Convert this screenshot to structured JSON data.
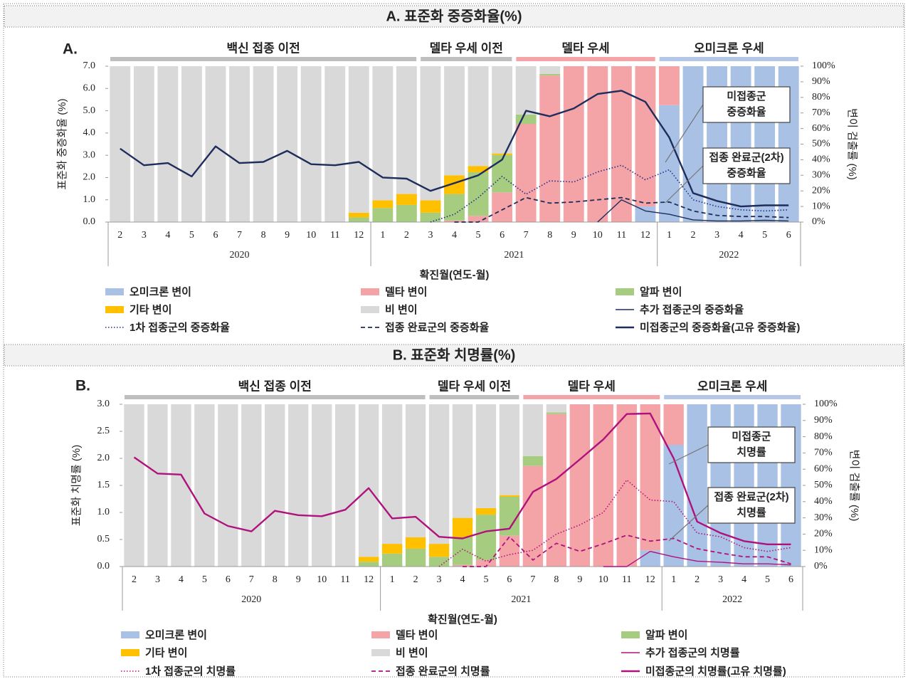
{
  "chart_data": [
    {
      "type": "combo",
      "section_title": "A. 표준화 중증화율(%)",
      "panel_label": "A.",
      "y_label": "표준화 중증화율 (%)",
      "y2_label": "변이 검출률 (%)",
      "x_label": "확진월(연도-월)",
      "periods": [
        {
          "label": "백신 접종 이전",
          "color": "#bfbfbf"
        },
        {
          "label": "델타 우세 이전",
          "color": "#bfbfbf"
        },
        {
          "label": "델타 우세",
          "color": "#f4a3a6"
        },
        {
          "label": "오미크론 우세",
          "color": "#b4c7e7"
        }
      ],
      "annotations": [
        [
          "미접종군",
          "중증화율"
        ],
        [
          "접종 완료군(2차)",
          "중증화율"
        ]
      ],
      "categories": [
        [
          "2020",
          "2"
        ],
        [
          "2020",
          "3"
        ],
        [
          "2020",
          "4"
        ],
        [
          "2020",
          "5"
        ],
        [
          "2020",
          "6"
        ],
        [
          "2020",
          "7"
        ],
        [
          "2020",
          "8"
        ],
        [
          "2020",
          "9"
        ],
        [
          "2020",
          "10"
        ],
        [
          "2020",
          "11"
        ],
        [
          "2020",
          "12"
        ],
        [
          "2021",
          "1"
        ],
        [
          "2021",
          "2"
        ],
        [
          "2021",
          "3"
        ],
        [
          "2021",
          "4"
        ],
        [
          "2021",
          "5"
        ],
        [
          "2021",
          "6"
        ],
        [
          "2021",
          "7"
        ],
        [
          "2021",
          "8"
        ],
        [
          "2021",
          "9"
        ],
        [
          "2021",
          "10"
        ],
        [
          "2021",
          "11"
        ],
        [
          "2021",
          "12"
        ],
        [
          "2022",
          "1"
        ],
        [
          "2022",
          "2"
        ],
        [
          "2022",
          "3"
        ],
        [
          "2022",
          "4"
        ],
        [
          "2022",
          "5"
        ],
        [
          "2022",
          "6"
        ]
      ],
      "ylim": [
        0,
        7
      ],
      "yticks": [
        {
          "value": 0,
          "label": "0.0"
        },
        {
          "value": 1,
          "label": "1.0"
        },
        {
          "value": 2,
          "label": "2.0"
        },
        {
          "value": 3,
          "label": "3.0"
        },
        {
          "value": 4,
          "label": "4.0"
        },
        {
          "value": 5,
          "label": "5.0"
        },
        {
          "value": 6,
          "label": "6.0"
        },
        {
          "value": 7,
          "label": "7.0"
        }
      ],
      "y2lim": [
        0,
        100
      ],
      "y2ticks": [
        {
          "value": 0,
          "label": "0%"
        },
        {
          "value": 10,
          "label": "10%"
        },
        {
          "value": 20,
          "label": "20%"
        },
        {
          "value": 30,
          "label": "30%"
        },
        {
          "value": 40,
          "label": "40%"
        },
        {
          "value": 50,
          "label": "50%"
        },
        {
          "value": 60,
          "label": "60%"
        },
        {
          "value": 70,
          "label": "70%"
        },
        {
          "value": 80,
          "label": "80%"
        },
        {
          "value": 90,
          "label": "90%"
        },
        {
          "value": 100,
          "label": "100%"
        }
      ],
      "series": [
        {
          "name": "오미크론 변이",
          "color": "#a9c1e4",
          "axis": "y2",
          "kind": "bar",
          "values": [
            0,
            0,
            0,
            0,
            0,
            0,
            0,
            0,
            0,
            0,
            0,
            0,
            0,
            0,
            0,
            0,
            0,
            0,
            0,
            0,
            0,
            0,
            10,
            75,
            100,
            100,
            100,
            100,
            100
          ]
        },
        {
          "name": "델타 변이",
          "color": "#f4a3a6",
          "axis": "y2",
          "kind": "bar",
          "values": [
            0,
            0,
            0,
            0,
            0,
            0,
            0,
            0,
            0,
            0,
            0,
            0,
            0,
            0,
            1,
            4,
            19,
            63,
            94,
            100,
            100,
            100,
            90,
            25,
            0,
            0,
            0,
            0,
            0
          ]
        },
        {
          "name": "알파 변이",
          "color": "#a6cd7f",
          "axis": "y2",
          "kind": "bar",
          "values": [
            0,
            0,
            0,
            0,
            0,
            0,
            0,
            0,
            0,
            0,
            3,
            9,
            11,
            6,
            17,
            28,
            24,
            6,
            1,
            0,
            0,
            0,
            0,
            0,
            0,
            0,
            0,
            0,
            0
          ]
        },
        {
          "name": "기타 변이",
          "color": "#ffc000",
          "axis": "y2",
          "kind": "bar",
          "values": [
            0,
            0,
            0,
            0,
            0,
            0,
            0,
            0,
            0,
            0,
            3,
            5,
            7,
            8,
            12,
            4,
            1,
            0,
            0,
            0,
            0,
            0,
            0,
            0,
            0,
            0,
            0,
            0,
            0
          ]
        },
        {
          "name": "비 변이",
          "color": "#d9d9d9",
          "axis": "y2",
          "kind": "bar",
          "values": [
            100,
            100,
            100,
            100,
            100,
            100,
            100,
            100,
            100,
            100,
            94,
            86,
            82,
            86,
            70,
            64,
            56,
            31,
            5,
            0,
            0,
            0,
            0,
            0,
            0,
            0,
            0,
            0,
            0
          ]
        },
        {
          "name": "미접종군의 중증화율(고유 중증화율)",
          "color": "#1f2d5c",
          "kind": "line",
          "dash": "solid",
          "values": [
            3.3,
            2.55,
            2.65,
            2.05,
            3.4,
            2.65,
            2.7,
            3.2,
            2.6,
            2.55,
            2.7,
            2.0,
            1.95,
            1.4,
            1.75,
            2.1,
            2.8,
            5.0,
            4.75,
            5.1,
            5.75,
            5.9,
            5.4,
            3.8,
            1.3,
            0.95,
            0.7,
            0.75,
            0.75
          ]
        },
        {
          "name": "1차 접종군의 중증화율",
          "color": "#1f2d8c",
          "kind": "line",
          "dash": "dotted",
          "values": [
            null,
            null,
            null,
            null,
            null,
            null,
            null,
            null,
            null,
            null,
            null,
            null,
            null,
            0.0,
            0.35,
            1.1,
            2.05,
            1.25,
            1.85,
            1.8,
            2.25,
            2.55,
            1.9,
            2.35,
            1.0,
            0.7,
            0.55,
            0.5,
            0.55
          ]
        },
        {
          "name": "접종 완료군의 중증화율",
          "color": "#1f2d5c",
          "kind": "line",
          "dash": "dashed",
          "values": [
            null,
            null,
            null,
            null,
            null,
            null,
            null,
            null,
            null,
            null,
            null,
            null,
            null,
            null,
            0.0,
            0.0,
            0.55,
            1.1,
            0.85,
            0.9,
            1.0,
            1.1,
            0.85,
            0.9,
            0.5,
            0.3,
            0.25,
            0.25,
            0.2
          ]
        },
        {
          "name": "추가 접종군의 중증화율",
          "color": "#1f2d5c",
          "kind": "line",
          "dash": "thin",
          "values": [
            null,
            null,
            null,
            null,
            null,
            null,
            null,
            null,
            null,
            null,
            null,
            null,
            null,
            null,
            null,
            null,
            null,
            null,
            null,
            null,
            0.0,
            1.0,
            0.5,
            0.35,
            0.1,
            0.05,
            0.05,
            0.08,
            0.05
          ]
        }
      ]
    },
    {
      "type": "combo",
      "section_title": "B. 표준화 치명률(%)",
      "panel_label": "B.",
      "y_label": "표준화 치명률 (%)",
      "y2_label": "변이 검출률 (%)",
      "x_label": "확진월(연도-월)",
      "periods": [
        {
          "label": "백신 접종 이전",
          "color": "#bfbfbf"
        },
        {
          "label": "델타 우세 이전",
          "color": "#bfbfbf"
        },
        {
          "label": "델타 우세",
          "color": "#f4a3a6"
        },
        {
          "label": "오미크론 우세",
          "color": "#b4c7e7"
        }
      ],
      "annotations": [
        [
          "미접종군",
          "치명률"
        ],
        [
          "접종 완료군(2차)",
          "치명률"
        ]
      ],
      "categories": [
        [
          "2020",
          "2"
        ],
        [
          "2020",
          "3"
        ],
        [
          "2020",
          "4"
        ],
        [
          "2020",
          "5"
        ],
        [
          "2020",
          "6"
        ],
        [
          "2020",
          "7"
        ],
        [
          "2020",
          "8"
        ],
        [
          "2020",
          "9"
        ],
        [
          "2020",
          "10"
        ],
        [
          "2020",
          "11"
        ],
        [
          "2020",
          "12"
        ],
        [
          "2021",
          "1"
        ],
        [
          "2021",
          "2"
        ],
        [
          "2021",
          "3"
        ],
        [
          "2021",
          "4"
        ],
        [
          "2021",
          "5"
        ],
        [
          "2021",
          "6"
        ],
        [
          "2021",
          "7"
        ],
        [
          "2021",
          "8"
        ],
        [
          "2021",
          "9"
        ],
        [
          "2021",
          "10"
        ],
        [
          "2021",
          "11"
        ],
        [
          "2021",
          "12"
        ],
        [
          "2022",
          "1"
        ],
        [
          "2022",
          "2"
        ],
        [
          "2022",
          "3"
        ],
        [
          "2022",
          "4"
        ],
        [
          "2022",
          "5"
        ],
        [
          "2022",
          "6"
        ]
      ],
      "ylim": [
        0,
        3
      ],
      "yticks": [
        {
          "value": 0,
          "label": "0.0"
        },
        {
          "value": 0.5,
          "label": "0.5"
        },
        {
          "value": 1,
          "label": "1.0"
        },
        {
          "value": 1.5,
          "label": "1.5"
        },
        {
          "value": 2,
          "label": "2.0"
        },
        {
          "value": 2.5,
          "label": "2.5"
        },
        {
          "value": 3,
          "label": "3.0"
        }
      ],
      "y2lim": [
        0,
        100
      ],
      "y2ticks": [
        {
          "value": 0,
          "label": "0%"
        },
        {
          "value": 10,
          "label": "10%"
        },
        {
          "value": 20,
          "label": "20%"
        },
        {
          "value": 30,
          "label": "30%"
        },
        {
          "value": 40,
          "label": "40%"
        },
        {
          "value": 50,
          "label": "50%"
        },
        {
          "value": 60,
          "label": "60%"
        },
        {
          "value": 70,
          "label": "70%"
        },
        {
          "value": 80,
          "label": "80%"
        },
        {
          "value": 90,
          "label": "90%"
        },
        {
          "value": 100,
          "label": "100%"
        }
      ],
      "series": [
        {
          "name": "오미크론 변이",
          "color": "#a9c1e4",
          "axis": "y2",
          "kind": "bar",
          "values": [
            0,
            0,
            0,
            0,
            0,
            0,
            0,
            0,
            0,
            0,
            0,
            0,
            0,
            0,
            0,
            0,
            0,
            0,
            0,
            0,
            0,
            0,
            10,
            75,
            100,
            100,
            100,
            100,
            100
          ]
        },
        {
          "name": "델타 변이",
          "color": "#f4a3a6",
          "axis": "y2",
          "kind": "bar",
          "values": [
            0,
            0,
            0,
            0,
            0,
            0,
            0,
            0,
            0,
            0,
            0,
            0,
            0,
            0,
            1,
            4,
            19,
            62,
            94,
            100,
            100,
            100,
            90,
            25,
            0,
            0,
            0,
            0,
            0
          ]
        },
        {
          "name": "알파 변이",
          "color": "#a6cd7f",
          "axis": "y2",
          "kind": "bar",
          "values": [
            0,
            0,
            0,
            0,
            0,
            0,
            0,
            0,
            0,
            0,
            3,
            8,
            11,
            6,
            17,
            28,
            24,
            6,
            1,
            0,
            0,
            0,
            0,
            0,
            0,
            0,
            0,
            0,
            0
          ]
        },
        {
          "name": "기타 변이",
          "color": "#ffc000",
          "axis": "y2",
          "kind": "bar",
          "values": [
            0,
            0,
            0,
            0,
            0,
            0,
            0,
            0,
            0,
            0,
            3,
            6,
            7,
            8,
            12,
            4,
            1,
            0,
            0,
            0,
            0,
            0,
            0,
            0,
            0,
            0,
            0,
            0,
            0
          ]
        },
        {
          "name": "비 변이",
          "color": "#d9d9d9",
          "axis": "y2",
          "kind": "bar",
          "values": [
            100,
            100,
            100,
            100,
            100,
            100,
            100,
            100,
            100,
            100,
            94,
            86,
            82,
            86,
            70,
            64,
            56,
            32,
            5,
            0,
            0,
            0,
            0,
            0,
            0,
            0,
            0,
            0,
            0
          ]
        },
        {
          "name": "미접종군의 치명률(고유 치명률)",
          "color": "#b0127d",
          "kind": "line",
          "dash": "solid",
          "values": [
            2.02,
            1.72,
            1.7,
            0.98,
            0.75,
            0.65,
            1.03,
            0.95,
            0.93,
            1.05,
            1.45,
            0.89,
            0.92,
            0.55,
            0.52,
            0.65,
            0.7,
            1.38,
            1.62,
            1.98,
            2.35,
            2.82,
            2.83,
            2.0,
            0.83,
            0.62,
            0.47,
            0.41,
            0.41
          ]
        },
        {
          "name": "1차 접종군의 치명률",
          "color": "#b0127d",
          "kind": "line",
          "dash": "dotted",
          "values": [
            null,
            null,
            null,
            null,
            null,
            null,
            null,
            null,
            null,
            null,
            null,
            null,
            null,
            0.0,
            0.32,
            0.1,
            0.22,
            0.3,
            0.6,
            0.77,
            1.0,
            1.6,
            1.23,
            1.2,
            0.62,
            0.55,
            0.35,
            0.28,
            0.35
          ]
        },
        {
          "name": "접종 완료군의 치명률",
          "color": "#b0127d",
          "kind": "line",
          "dash": "dashed",
          "values": [
            null,
            null,
            null,
            null,
            null,
            null,
            null,
            null,
            null,
            null,
            null,
            null,
            null,
            null,
            0.0,
            0.0,
            0.55,
            0.12,
            0.43,
            0.28,
            0.42,
            0.58,
            0.47,
            0.52,
            0.33,
            0.25,
            0.18,
            0.18,
            0.05
          ]
        },
        {
          "name": "추가 접종군의 치명률",
          "color": "#b0127d",
          "kind": "line",
          "dash": "thin",
          "values": [
            null,
            null,
            null,
            null,
            null,
            null,
            null,
            null,
            null,
            null,
            null,
            null,
            null,
            null,
            null,
            null,
            null,
            null,
            null,
            null,
            0.0,
            0.0,
            0.28,
            0.18,
            0.1,
            0.08,
            0.05,
            0.05,
            0.03
          ]
        }
      ]
    }
  ]
}
